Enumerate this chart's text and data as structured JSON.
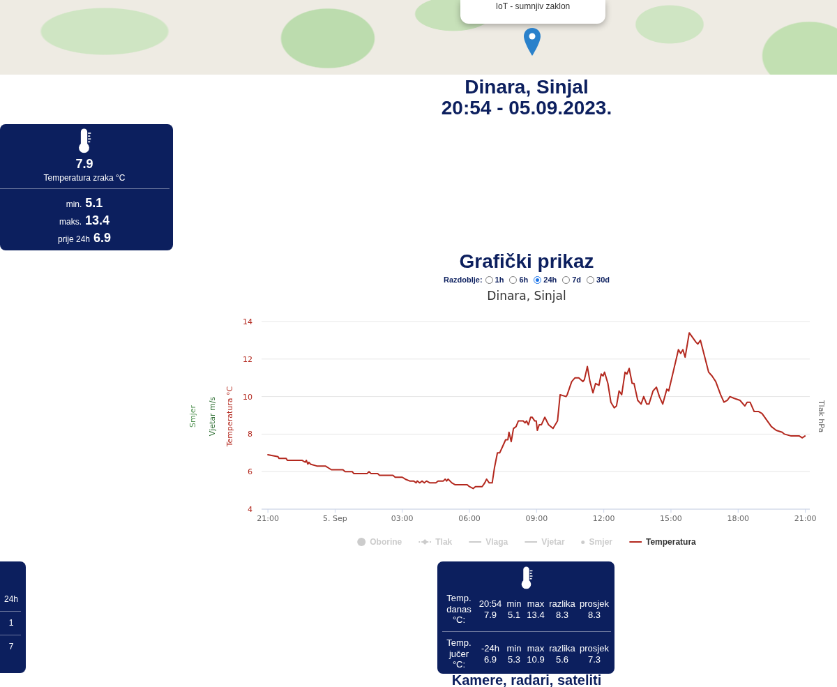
{
  "chart_data": [
    {
      "type": "other",
      "title": "Dinara, Sinjal",
      "subtitle": "20:54 - 05.09.2023.",
      "annotations": [
        "IoT - sumnjiv zaklon"
      ]
    },
    {
      "type": "other",
      "annotations": [
        "7.9",
        "Temperatura zraka °C",
        "min.",
        "5.1",
        "maks.",
        "13.4",
        "prije 24h",
        "6.9"
      ]
    },
    {
      "type": "line",
      "title": "Grafički prikaz",
      "subtitle": "Dinara, Sinjal",
      "annotations": [
        "Razdoblje:",
        "1h",
        "6h",
        "24h",
        "7d",
        "30d",
        "Smjer",
        "Vjetar m/s"
      ],
      "ylabel": "Temperatura °C",
      "y2label": "Tlak hPa",
      "x": [
        "2023-09-04T21:00",
        "2023-09-04T21:27",
        "2023-09-04T21:30",
        "2023-09-04T21:49",
        "2023-09-04T21:52",
        "2023-09-04T22:32",
        "2023-09-04T22:40",
        "2023-09-04T22:43",
        "2023-09-04T22:47",
        "2023-09-04T22:50",
        "2023-09-04T22:54",
        "2023-09-04T23:11",
        "2023-09-04T23:34",
        "2023-09-04T23:50",
        "2023-09-05T00:21",
        "2023-09-05T00:27",
        "2023-09-05T00:46",
        "2023-09-05T00:50",
        "2023-09-05T01:26",
        "2023-09-05T01:31",
        "2023-09-05T01:36",
        "2023-09-05T01:54",
        "2023-09-05T01:59",
        "2023-09-05T02:35",
        "2023-09-05T02:41",
        "2023-09-05T03:00",
        "2023-09-05T03:08",
        "2023-09-05T03:20",
        "2023-09-05T03:31",
        "2023-09-05T03:37",
        "2023-09-05T03:40",
        "2023-09-05T03:47",
        "2023-09-05T03:53",
        "2023-09-05T03:59",
        "2023-09-05T04:05",
        "2023-09-05T04:14",
        "2023-09-05T04:30",
        "2023-09-05T04:36",
        "2023-09-05T04:50",
        "2023-09-05T04:55",
        "2023-09-05T04:59",
        "2023-09-05T05:03",
        "2023-09-05T05:13",
        "2023-09-05T05:22",
        "2023-09-05T05:54",
        "2023-09-05T06:00",
        "2023-09-05T06:10",
        "2023-09-05T06:16",
        "2023-09-05T06:34",
        "2023-09-05T06:41",
        "2023-09-05T06:46",
        "2023-09-05T06:53",
        "2023-09-05T07:01",
        "2023-09-05T07:07",
        "2023-09-05T07:15",
        "2023-09-05T07:21",
        "2023-09-05T07:28",
        "2023-09-05T07:37",
        "2023-09-05T07:43",
        "2023-09-05T07:46",
        "2023-09-05T07:52",
        "2023-09-05T07:58",
        "2023-09-05T08:05",
        "2023-09-05T08:11",
        "2023-09-05T08:24",
        "2023-09-05T08:29",
        "2023-09-05T08:33",
        "2023-09-05T08:38",
        "2023-09-05T08:44",
        "2023-09-05T08:48",
        "2023-09-05T08:55",
        "2023-09-05T08:59",
        "2023-09-05T09:02",
        "2023-09-05T09:07",
        "2023-09-05T09:13",
        "2023-09-05T09:22",
        "2023-09-05T09:32",
        "2023-09-05T09:44",
        "2023-09-05T09:56",
        "2023-09-05T10:03",
        "2023-09-05T10:19",
        "2023-09-05T10:22",
        "2023-09-05T10:34",
        "2023-09-05T10:43",
        "2023-09-05T10:53",
        "2023-09-05T11:04",
        "2023-09-05T11:08",
        "2023-09-05T11:16",
        "2023-09-05T11:23",
        "2023-09-05T11:31",
        "2023-09-05T11:38",
        "2023-09-05T11:47",
        "2023-09-05T11:53",
        "2023-09-05T11:58",
        "2023-09-05T12:02",
        "2023-09-05T12:11",
        "2023-09-05T12:19",
        "2023-09-05T12:28",
        "2023-09-05T12:34",
        "2023-09-05T12:41",
        "2023-09-05T12:48",
        "2023-09-05T12:57",
        "2023-09-05T13:02",
        "2023-09-05T13:08",
        "2023-09-05T13:16",
        "2023-09-05T13:21",
        "2023-09-05T13:31",
        "2023-09-05T13:40",
        "2023-09-05T13:47",
        "2023-09-05T13:55",
        "2023-09-05T14:01",
        "2023-09-05T14:12",
        "2023-09-05T14:21",
        "2023-09-05T14:29",
        "2023-09-05T14:38",
        "2023-09-05T14:49",
        "2023-09-05T14:54",
        "2023-09-05T15:20",
        "2023-09-05T15:26",
        "2023-09-05T15:32",
        "2023-09-05T15:38",
        "2023-09-05T15:49",
        "2023-09-05T16:07",
        "2023-09-05T16:12",
        "2023-09-05T16:19",
        "2023-09-05T16:41",
        "2023-09-05T16:50",
        "2023-09-05T17:00",
        "2023-09-05T17:13",
        "2023-09-05T17:22",
        "2023-09-05T17:31",
        "2023-09-05T17:38",
        "2023-09-05T17:50",
        "2023-09-05T18:05",
        "2023-09-05T18:18",
        "2023-09-05T18:24",
        "2023-09-05T18:32",
        "2023-09-05T18:43",
        "2023-09-05T18:55",
        "2023-09-05T19:04",
        "2023-09-05T19:29",
        "2023-09-05T19:42",
        "2023-09-05T19:58",
        "2023-09-05T20:04",
        "2023-09-05T20:22",
        "2023-09-05T20:44",
        "2023-09-05T20:52",
        "2023-09-05T20:59"
      ],
      "xlim": [
        "2023-09-04T20:43",
        "2023-09-05T21:12"
      ],
      "xticks": [
        {
          "value": "2023-09-04T21:00",
          "label": "21:00"
        },
        {
          "value": "2023-09-05T00:00",
          "label": "5. Sep"
        },
        {
          "value": "2023-09-05T03:00",
          "label": "03:00"
        },
        {
          "value": "2023-09-05T06:00",
          "label": "06:00"
        },
        {
          "value": "2023-09-05T09:00",
          "label": "09:00"
        },
        {
          "value": "2023-09-05T12:00",
          "label": "12:00"
        },
        {
          "value": "2023-09-05T15:00",
          "label": "15:00"
        },
        {
          "value": "2023-09-05T18:00",
          "label": "18:00"
        },
        {
          "value": "2023-09-05T21:00",
          "label": "21:00"
        }
      ],
      "ylim": [
        4,
        14
      ],
      "yticks": [
        4,
        6,
        8,
        10,
        12,
        14
      ],
      "grid": "y",
      "legend": "bottom",
      "marker": "none",
      "series": [
        {
          "name": "Oborine",
          "type": "bar",
          "color": "#cccccc",
          "values": [
            null,
            null,
            null,
            null,
            null,
            null,
            null,
            null,
            null,
            null,
            null,
            null,
            null,
            null,
            null,
            null,
            null,
            null,
            null,
            null,
            null,
            null,
            null,
            null,
            null,
            null,
            null,
            null,
            null,
            null,
            null,
            null,
            null,
            null,
            null,
            null,
            null,
            null,
            null,
            null,
            null,
            null,
            null,
            null,
            null,
            null,
            null,
            null,
            null,
            null,
            null,
            null,
            null,
            null,
            null,
            null,
            null,
            null,
            null,
            null,
            null,
            null,
            null,
            null,
            null,
            null,
            null,
            null,
            null,
            null,
            null,
            null,
            null,
            null,
            null,
            null,
            null,
            null,
            null,
            null,
            null,
            null,
            null,
            null,
            null,
            null,
            null,
            null,
            null,
            null,
            null,
            null,
            null,
            null,
            null,
            null,
            null,
            null,
            null,
            null,
            null,
            null,
            null,
            null,
            null,
            null,
            null,
            null,
            null,
            null,
            null,
            null,
            null,
            null,
            null,
            null,
            null,
            null,
            null,
            null,
            null,
            null,
            null,
            null,
            null,
            null,
            null,
            null,
            null,
            null,
            null,
            null,
            null,
            null,
            null,
            null,
            null,
            null,
            null,
            null,
            null,
            null,
            null,
            null,
            null,
            null,
            null,
            null
          ]
        },
        {
          "name": "Tlak",
          "type": "line",
          "color": "#cccccc",
          "marker": "diamond",
          "line_style": "dotted",
          "values": [
            null,
            null,
            null,
            null,
            null,
            null,
            null,
            null,
            null,
            null,
            null,
            null,
            null,
            null,
            null,
            null,
            null,
            null,
            null,
            null,
            null,
            null,
            null,
            null,
            null,
            null,
            null,
            null,
            null,
            null,
            null,
            null,
            null,
            null,
            null,
            null,
            null,
            null,
            null,
            null,
            null,
            null,
            null,
            null,
            null,
            null,
            null,
            null,
            null,
            null,
            null,
            null,
            null,
            null,
            null,
            null,
            null,
            null,
            null,
            null,
            null,
            null,
            null,
            null,
            null,
            null,
            null,
            null,
            null,
            null,
            null,
            null,
            null,
            null,
            null,
            null,
            null,
            null,
            null,
            null,
            null,
            null,
            null,
            null,
            null,
            null,
            null,
            null,
            null,
            null,
            null,
            null,
            null,
            null,
            null,
            null,
            null,
            null,
            null,
            null,
            null,
            null,
            null,
            null,
            null,
            null,
            null,
            null,
            null,
            null,
            null,
            null,
            null,
            null,
            null,
            null,
            null,
            null,
            null,
            null,
            null,
            null,
            null,
            null,
            null,
            null,
            null,
            null,
            null,
            null,
            null,
            null,
            null,
            null,
            null,
            null,
            null,
            null,
            null,
            null,
            null,
            null,
            null,
            null,
            null,
            null,
            null,
            null
          ]
        },
        {
          "name": "Vlaga",
          "type": "line",
          "color": "#cccccc",
          "values": [
            null,
            null,
            null,
            null,
            null,
            null,
            null,
            null,
            null,
            null,
            null,
            null,
            null,
            null,
            null,
            null,
            null,
            null,
            null,
            null,
            null,
            null,
            null,
            null,
            null,
            null,
            null,
            null,
            null,
            null,
            null,
            null,
            null,
            null,
            null,
            null,
            null,
            null,
            null,
            null,
            null,
            null,
            null,
            null,
            null,
            null,
            null,
            null,
            null,
            null,
            null,
            null,
            null,
            null,
            null,
            null,
            null,
            null,
            null,
            null,
            null,
            null,
            null,
            null,
            null,
            null,
            null,
            null,
            null,
            null,
            null,
            null,
            null,
            null,
            null,
            null,
            null,
            null,
            null,
            null,
            null,
            null,
            null,
            null,
            null,
            null,
            null,
            null,
            null,
            null,
            null,
            null,
            null,
            null,
            null,
            null,
            null,
            null,
            null,
            null,
            null,
            null,
            null,
            null,
            null,
            null,
            null,
            null,
            null,
            null,
            null,
            null,
            null,
            null,
            null,
            null,
            null,
            null,
            null,
            null,
            null,
            null,
            null,
            null,
            null,
            null,
            null,
            null,
            null,
            null,
            null,
            null,
            null,
            null,
            null,
            null,
            null,
            null,
            null,
            null,
            null,
            null,
            null,
            null,
            null,
            null,
            null,
            null
          ]
        },
        {
          "name": "Vjetar",
          "type": "line",
          "color": "#cccccc",
          "values": [
            null,
            null,
            null,
            null,
            null,
            null,
            null,
            null,
            null,
            null,
            null,
            null,
            null,
            null,
            null,
            null,
            null,
            null,
            null,
            null,
            null,
            null,
            null,
            null,
            null,
            null,
            null,
            null,
            null,
            null,
            null,
            null,
            null,
            null,
            null,
            null,
            null,
            null,
            null,
            null,
            null,
            null,
            null,
            null,
            null,
            null,
            null,
            null,
            null,
            null,
            null,
            null,
            null,
            null,
            null,
            null,
            null,
            null,
            null,
            null,
            null,
            null,
            null,
            null,
            null,
            null,
            null,
            null,
            null,
            null,
            null,
            null,
            null,
            null,
            null,
            null,
            null,
            null,
            null,
            null,
            null,
            null,
            null,
            null,
            null,
            null,
            null,
            null,
            null,
            null,
            null,
            null,
            null,
            null,
            null,
            null,
            null,
            null,
            null,
            null,
            null,
            null,
            null,
            null,
            null,
            null,
            null,
            null,
            null,
            null,
            null,
            null,
            null,
            null,
            null,
            null,
            null,
            null,
            null,
            null,
            null,
            null,
            null,
            null,
            null,
            null,
            null,
            null,
            null,
            null,
            null,
            null,
            null,
            null,
            null,
            null,
            null,
            null,
            null,
            null,
            null,
            null,
            null,
            null,
            null,
            null,
            null,
            null
          ]
        },
        {
          "name": "Smjer",
          "type": "scatter",
          "color": "#cccccc",
          "values": [
            null,
            null,
            null,
            null,
            null,
            null,
            null,
            null,
            null,
            null,
            null,
            null,
            null,
            null,
            null,
            null,
            null,
            null,
            null,
            null,
            null,
            null,
            null,
            null,
            null,
            null,
            null,
            null,
            null,
            null,
            null,
            null,
            null,
            null,
            null,
            null,
            null,
            null,
            null,
            null,
            null,
            null,
            null,
            null,
            null,
            null,
            null,
            null,
            null,
            null,
            null,
            null,
            null,
            null,
            null,
            null,
            null,
            null,
            null,
            null,
            null,
            null,
            null,
            null,
            null,
            null,
            null,
            null,
            null,
            null,
            null,
            null,
            null,
            null,
            null,
            null,
            null,
            null,
            null,
            null,
            null,
            null,
            null,
            null,
            null,
            null,
            null,
            null,
            null,
            null,
            null,
            null,
            null,
            null,
            null,
            null,
            null,
            null,
            null,
            null,
            null,
            null,
            null,
            null,
            null,
            null,
            null,
            null,
            null,
            null,
            null,
            null,
            null,
            null,
            null,
            null,
            null,
            null,
            null,
            null,
            null,
            null,
            null,
            null,
            null,
            null,
            null,
            null,
            null,
            null,
            null,
            null,
            null,
            null,
            null,
            null,
            null,
            null,
            null,
            null,
            null,
            null,
            null,
            null,
            null,
            null,
            null,
            null
          ]
        },
        {
          "name": "Temperatura",
          "type": "line",
          "color": "#b3281e",
          "values": [
            6.9,
            6.8,
            6.7,
            6.7,
            6.6,
            6.6,
            6.5,
            6.6,
            6.4,
            6.5,
            6.4,
            6.3,
            6.3,
            6.1,
            6.1,
            6.0,
            6.0,
            5.9,
            5.9,
            6.0,
            5.9,
            5.9,
            5.8,
            5.8,
            5.7,
            5.7,
            5.6,
            5.5,
            5.5,
            5.4,
            5.5,
            5.4,
            5.5,
            5.4,
            5.5,
            5.4,
            5.4,
            5.5,
            5.5,
            5.6,
            5.5,
            5.6,
            5.4,
            5.3,
            5.3,
            5.2,
            5.1,
            5.2,
            5.2,
            5.4,
            5.6,
            5.4,
            5.4,
            6.2,
            7.0,
            7.0,
            7.3,
            7.7,
            7.7,
            8.1,
            7.6,
            8.3,
            8.4,
            8.7,
            8.7,
            8.6,
            8.7,
            8.5,
            8.9,
            8.9,
            8.7,
            8.7,
            8.2,
            8.5,
            8.5,
            8.9,
            8.5,
            8.3,
            8.7,
            10.1,
            10.0,
            10.1,
            10.8,
            11.0,
            11.0,
            10.8,
            10.9,
            11.6,
            10.8,
            10.2,
            10.7,
            10.6,
            11.2,
            11.1,
            11.3,
            10.7,
            9.7,
            9.4,
            9.5,
            10.3,
            10.1,
            11.3,
            11.2,
            11.5,
            10.7,
            10.7,
            9.8,
            9.6,
            10.0,
            9.6,
            9.6,
            10.3,
            10.5,
            10.0,
            9.6,
            10.4,
            10.3,
            12.5,
            12.3,
            12.5,
            12.1,
            13.4,
            12.9,
            12.8,
            13.0,
            11.3,
            11.1,
            10.8,
            10.1,
            9.7,
            9.8,
            10.0,
            9.9,
            9.8,
            9.5,
            9.7,
            9.7,
            9.2,
            9.2,
            9.1,
            8.4,
            8.2,
            8.1,
            8.0,
            7.9,
            7.9,
            7.8,
            7.9
          ]
        }
      ]
    },
    {
      "type": "other",
      "annotations": [
        "24h",
        "1",
        "7"
      ]
    },
    {
      "type": "other",
      "annotations": [
        "Temp. danas °C:",
        "20:54",
        "7.9",
        "min",
        "5.1",
        "max",
        "13.4",
        "razlika",
        "8.3",
        "prosjek",
        "8.3",
        "Temp. jučer °C:",
        "-24h",
        "6.9",
        "min",
        "5.3",
        "max",
        "10.9",
        "razlika",
        "5.6",
        "prosjek",
        "7.3"
      ]
    },
    {
      "type": "other",
      "title": "Kamere, radari, sateliti"
    }
  ]
}
